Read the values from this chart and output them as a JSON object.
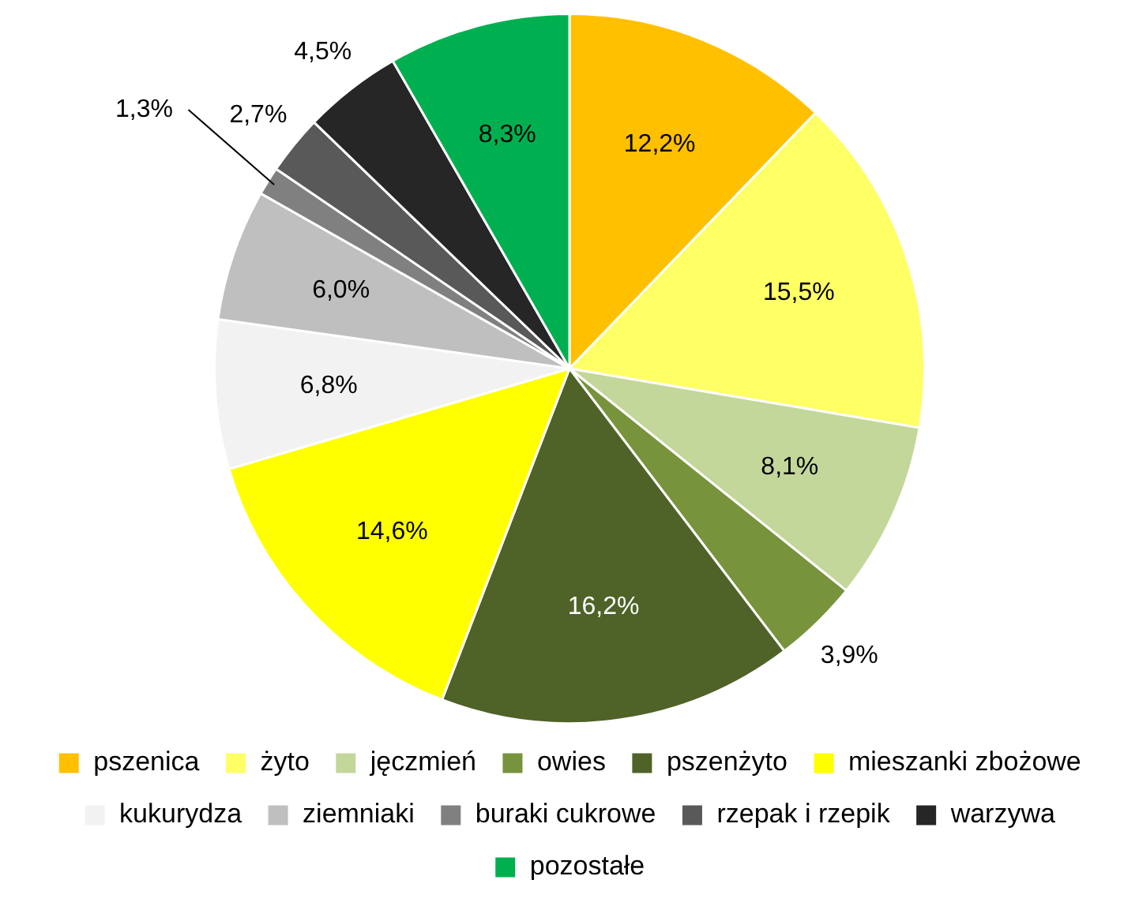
{
  "chart_data": {
    "type": "pie",
    "categories": [
      "pszenica",
      "żyto",
      "jęczmień",
      "owies",
      "pszenżyto",
      "mieszanki zbożowe",
      "kukurydza",
      "ziemniaki",
      "buraki cukrowe",
      "rzepak i rzepik",
      "warzywa",
      "pozostałe"
    ],
    "values": [
      12.2,
      15.5,
      8.1,
      3.9,
      16.2,
      14.6,
      6.8,
      6.0,
      1.3,
      2.7,
      4.5,
      8.3
    ],
    "value_labels": [
      "12,2%",
      "15,5%",
      "8,1%",
      "3,9%",
      "16,2%",
      "14,6%",
      "6,8%",
      "6,0%",
      "1,3%",
      "2,7%",
      "4,5%",
      "8,3%"
    ],
    "colors": [
      "#ffc000",
      "#ffff66",
      "#c4d79b",
      "#77933c",
      "#4f6228",
      "#ffff00",
      "#f2f2f2",
      "#bfbfbf",
      "#808080",
      "#595959",
      "#262626",
      "#00b050"
    ],
    "legend": "bottom"
  }
}
